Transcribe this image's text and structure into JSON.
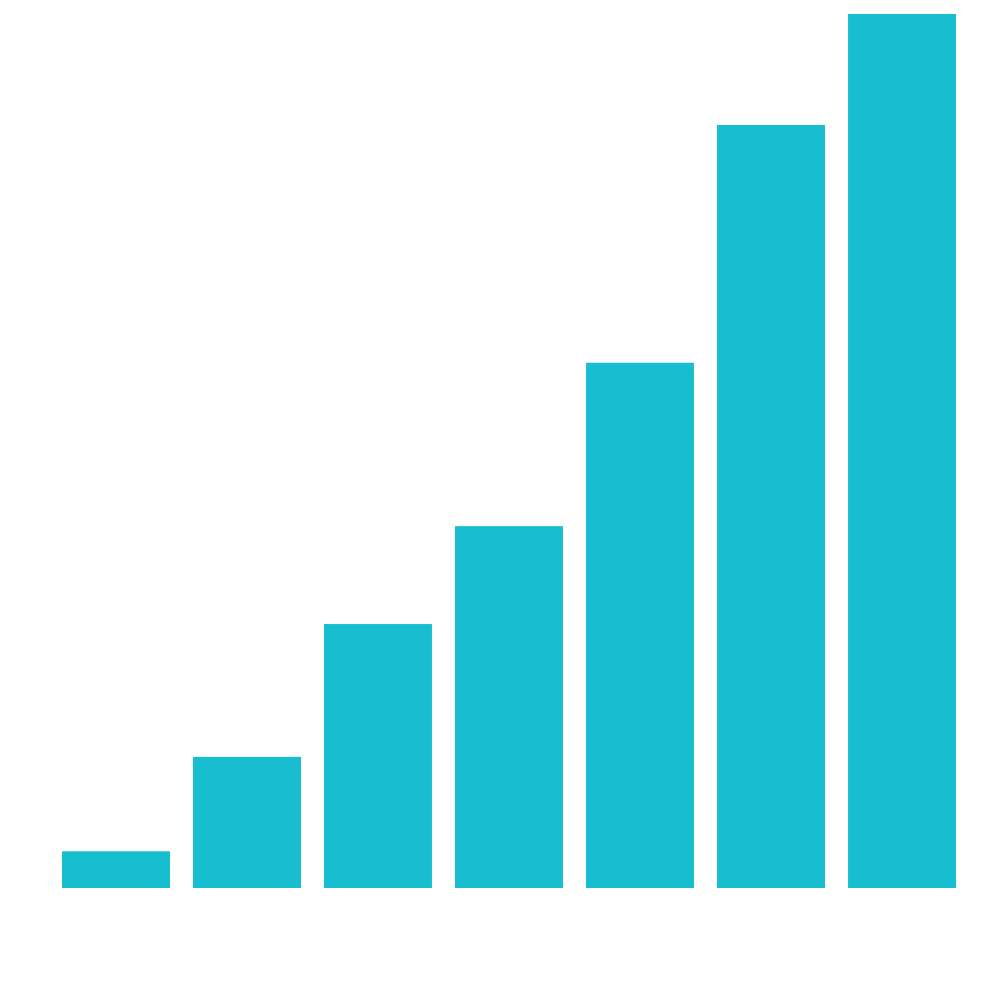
{
  "chart_data": {
    "type": "bar",
    "categories": [
      null,
      null,
      null,
      null,
      null,
      null,
      null
    ],
    "values": [
      4.2,
      15,
      30.2,
      41.4,
      60.1,
      87.3,
      100
    ],
    "color": "#17becf",
    "ylim": [
      0,
      100
    ]
  }
}
